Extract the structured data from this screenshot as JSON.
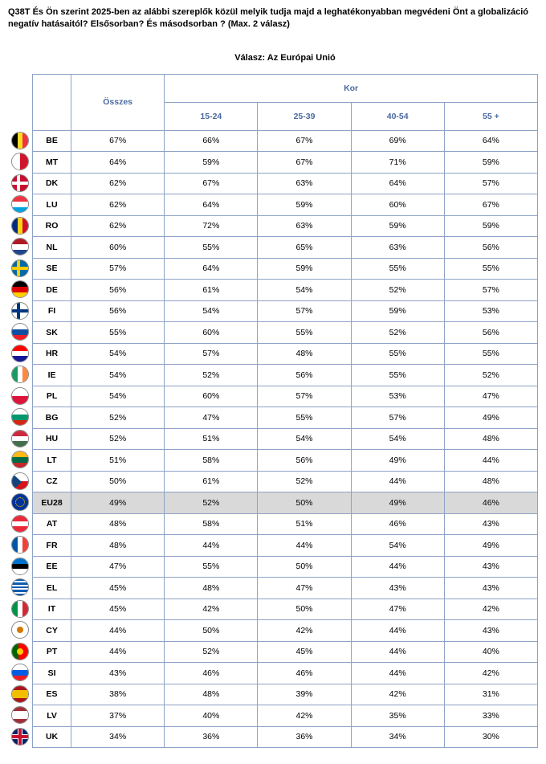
{
  "question": "Q38T És Ön szerint 2025-ben az alábbi szereplők közül melyik tudja majd a leghatékonyabban megvédeni Önt a globalizáció negatív hatásaitól? Elsősorban? És másodsorban ? (Max. 2 válasz)",
  "answer_title": "Válasz: Az Európai Unió",
  "headers": {
    "total": "Összes",
    "group": "Kor",
    "cols": [
      "15-24",
      "25-39",
      "40-54",
      "55 +"
    ]
  },
  "highlight_code": "EU28",
  "rows": [
    {
      "code": "BE",
      "flag": "be",
      "vals": [
        "67%",
        "66%",
        "67%",
        "69%",
        "64%"
      ]
    },
    {
      "code": "MT",
      "flag": "mt",
      "vals": [
        "64%",
        "59%",
        "67%",
        "71%",
        "59%"
      ]
    },
    {
      "code": "DK",
      "flag": "dk",
      "vals": [
        "62%",
        "67%",
        "63%",
        "64%",
        "57%"
      ]
    },
    {
      "code": "LU",
      "flag": "lu",
      "vals": [
        "62%",
        "64%",
        "59%",
        "60%",
        "67%"
      ]
    },
    {
      "code": "RO",
      "flag": "ro",
      "vals": [
        "62%",
        "72%",
        "63%",
        "59%",
        "59%"
      ]
    },
    {
      "code": "NL",
      "flag": "nl",
      "vals": [
        "60%",
        "55%",
        "65%",
        "63%",
        "56%"
      ]
    },
    {
      "code": "SE",
      "flag": "se",
      "vals": [
        "57%",
        "64%",
        "59%",
        "55%",
        "55%"
      ]
    },
    {
      "code": "DE",
      "flag": "de",
      "vals": [
        "56%",
        "61%",
        "54%",
        "52%",
        "57%"
      ]
    },
    {
      "code": "FI",
      "flag": "fi",
      "vals": [
        "56%",
        "54%",
        "57%",
        "59%",
        "53%"
      ]
    },
    {
      "code": "SK",
      "flag": "sk",
      "vals": [
        "55%",
        "60%",
        "55%",
        "52%",
        "56%"
      ]
    },
    {
      "code": "HR",
      "flag": "hr",
      "vals": [
        "54%",
        "57%",
        "48%",
        "55%",
        "55%"
      ]
    },
    {
      "code": "IE",
      "flag": "ie",
      "vals": [
        "54%",
        "52%",
        "56%",
        "55%",
        "52%"
      ]
    },
    {
      "code": "PL",
      "flag": "pl",
      "vals": [
        "54%",
        "60%",
        "57%",
        "53%",
        "47%"
      ]
    },
    {
      "code": "BG",
      "flag": "bg",
      "vals": [
        "52%",
        "47%",
        "55%",
        "57%",
        "49%"
      ]
    },
    {
      "code": "HU",
      "flag": "hu",
      "vals": [
        "52%",
        "51%",
        "54%",
        "54%",
        "48%"
      ]
    },
    {
      "code": "LT",
      "flag": "lt",
      "vals": [
        "51%",
        "58%",
        "56%",
        "49%",
        "44%"
      ]
    },
    {
      "code": "CZ",
      "flag": "cz",
      "vals": [
        "50%",
        "61%",
        "52%",
        "44%",
        "48%"
      ]
    },
    {
      "code": "EU28",
      "flag": "eu",
      "vals": [
        "49%",
        "52%",
        "50%",
        "49%",
        "46%"
      ]
    },
    {
      "code": "AT",
      "flag": "at",
      "vals": [
        "48%",
        "58%",
        "51%",
        "46%",
        "43%"
      ]
    },
    {
      "code": "FR",
      "flag": "fr",
      "vals": [
        "48%",
        "44%",
        "44%",
        "54%",
        "49%"
      ]
    },
    {
      "code": "EE",
      "flag": "ee",
      "vals": [
        "47%",
        "55%",
        "50%",
        "44%",
        "43%"
      ]
    },
    {
      "code": "EL",
      "flag": "el",
      "vals": [
        "45%",
        "48%",
        "47%",
        "43%",
        "43%"
      ]
    },
    {
      "code": "IT",
      "flag": "it",
      "vals": [
        "45%",
        "42%",
        "50%",
        "47%",
        "42%"
      ]
    },
    {
      "code": "CY",
      "flag": "cy",
      "vals": [
        "44%",
        "50%",
        "42%",
        "44%",
        "43%"
      ]
    },
    {
      "code": "PT",
      "flag": "pt",
      "vals": [
        "44%",
        "52%",
        "45%",
        "44%",
        "40%"
      ]
    },
    {
      "code": "SI",
      "flag": "si",
      "vals": [
        "43%",
        "46%",
        "46%",
        "44%",
        "42%"
      ]
    },
    {
      "code": "ES",
      "flag": "es",
      "vals": [
        "38%",
        "48%",
        "39%",
        "42%",
        "31%"
      ]
    },
    {
      "code": "LV",
      "flag": "lv",
      "vals": [
        "37%",
        "40%",
        "42%",
        "35%",
        "33%"
      ]
    },
    {
      "code": "UK",
      "flag": "uk",
      "vals": [
        "34%",
        "36%",
        "36%",
        "34%",
        "30%"
      ]
    }
  ],
  "flag_colors": {
    "be": [
      [
        "v",
        "#000000",
        "#fdda24",
        "#ef3340"
      ]
    ],
    "mt": [
      [
        "v",
        "#ffffff",
        "#cf142b"
      ]
    ],
    "dk": [
      [
        "bg",
        "#c8102e"
      ],
      [
        "hcross",
        "#ffffff"
      ]
    ],
    "lu": [
      [
        "h",
        "#ef3340",
        "#ffffff",
        "#00a3e0"
      ]
    ],
    "ro": [
      [
        "v",
        "#002b7f",
        "#fcd116",
        "#ce1126"
      ]
    ],
    "nl": [
      [
        "h",
        "#ae1c28",
        "#ffffff",
        "#21468b"
      ]
    ],
    "se": [
      [
        "bg",
        "#006aa7"
      ],
      [
        "hcross",
        "#fecc02"
      ]
    ],
    "de": [
      [
        "h",
        "#000000",
        "#dd0000",
        "#ffce00"
      ]
    ],
    "fi": [
      [
        "bg",
        "#ffffff"
      ],
      [
        "hcross",
        "#003580"
      ]
    ],
    "sk": [
      [
        "h",
        "#ffffff",
        "#0b4ea2",
        "#ee1c25"
      ]
    ],
    "hr": [
      [
        "h",
        "#ff0000",
        "#ffffff",
        "#171796"
      ]
    ],
    "ie": [
      [
        "v",
        "#169b62",
        "#ffffff",
        "#ff883e"
      ]
    ],
    "pl": [
      [
        "h",
        "#ffffff",
        "#dc143c"
      ]
    ],
    "bg": [
      [
        "h",
        "#ffffff",
        "#00966e",
        "#d62612"
      ]
    ],
    "hu": [
      [
        "h",
        "#cd2a3e",
        "#ffffff",
        "#436f4d"
      ]
    ],
    "lt": [
      [
        "h",
        "#fdb913",
        "#006a44",
        "#c1272d"
      ]
    ],
    "cz": [
      [
        "h",
        "#ffffff",
        "#d7141a"
      ],
      [
        "tri",
        "#11457e"
      ]
    ],
    "eu": [
      [
        "bg",
        "#003399"
      ],
      [
        "stars",
        "#ffcc00"
      ]
    ],
    "at": [
      [
        "h",
        "#ed2939",
        "#ffffff",
        "#ed2939"
      ]
    ],
    "fr": [
      [
        "v",
        "#0055a4",
        "#ffffff",
        "#ef4135"
      ]
    ],
    "ee": [
      [
        "h",
        "#0072ce",
        "#000000",
        "#ffffff"
      ]
    ],
    "el": [
      [
        "bg",
        "#0d5eaf"
      ],
      [
        "hstripes",
        "#ffffff"
      ]
    ],
    "it": [
      [
        "v",
        "#009246",
        "#ffffff",
        "#ce2b37"
      ]
    ],
    "cy": [
      [
        "bg",
        "#ffffff"
      ],
      [
        "dot",
        "#d57800"
      ]
    ],
    "pt": [
      [
        "v2",
        "#006600",
        "#ff0000"
      ],
      [
        "dot",
        "#ffcc00"
      ]
    ],
    "si": [
      [
        "h",
        "#ffffff",
        "#005ce5",
        "#ed1c24"
      ]
    ],
    "es": [
      [
        "h3",
        "#aa151b",
        "#f1bf00",
        "#aa151b"
      ]
    ],
    "lv": [
      [
        "h3",
        "#9e3039",
        "#ffffff",
        "#9e3039"
      ]
    ],
    "uk": [
      [
        "bg",
        "#012169"
      ],
      [
        "ukcross",
        "#ffffff",
        "#c8102e"
      ]
    ]
  }
}
